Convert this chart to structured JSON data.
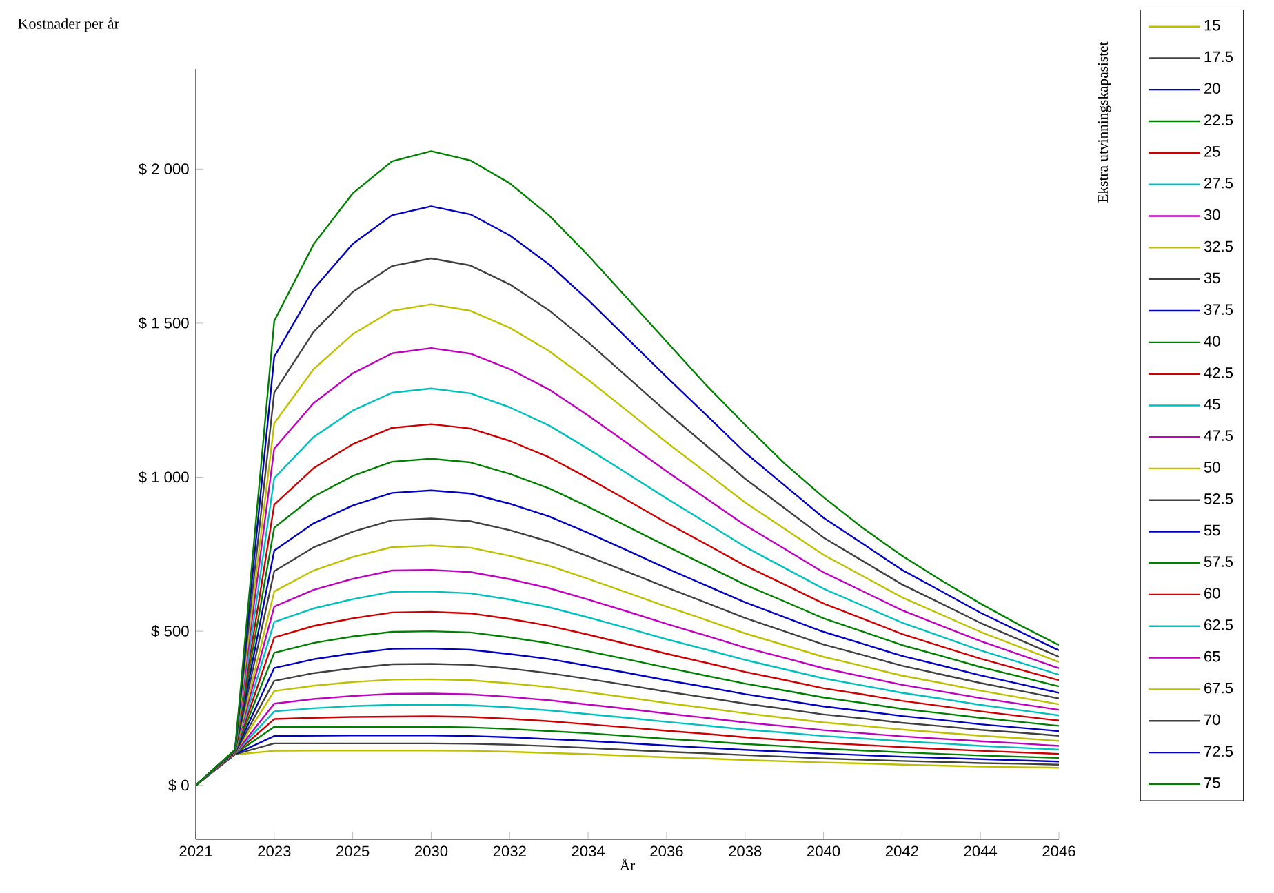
{
  "chart_data": {
    "type": "line",
    "ylabel": "Kostnader per år",
    "xlabel": "År",
    "legend_title": "Ekstra utvinningskapasistet",
    "legend": "right",
    "line_style": "solid",
    "categories": [
      "2021",
      null,
      "2023",
      null,
      "2025",
      null,
      "2030",
      null,
      "2032",
      null,
      "2034",
      null,
      "2036",
      null,
      "2038",
      null,
      "2040",
      null,
      "2042",
      null,
      "2044",
      null,
      "2046"
    ],
    "ylim": [
      -175,
      2325
    ],
    "yticks": [
      {
        "value": 0,
        "label": "$ 0"
      },
      {
        "value": 500,
        "label": "$ 500"
      },
      {
        "value": 1000,
        "label": "$ 1 000"
      },
      {
        "value": 1500,
        "label": "$ 1 500"
      },
      {
        "value": 2000,
        "label": "$ 2 000"
      }
    ],
    "series": [
      {
        "name": "15",
        "color": "#bfbf00",
        "values": [
          0,
          100,
          112,
          113,
          113,
          113,
          113,
          112,
          109,
          105,
          101,
          96,
          91,
          87,
          82,
          78,
          74,
          71,
          67,
          64,
          61,
          59,
          57
        ]
      },
      {
        "name": "17.5",
        "color": "#404040",
        "values": [
          0,
          101,
          136,
          136,
          136,
          136,
          136,
          135,
          132,
          127,
          121,
          115,
          109,
          104,
          98,
          93,
          87,
          83,
          79,
          76,
          72,
          70,
          67
        ]
      },
      {
        "name": "20",
        "color": "#0000bf",
        "values": [
          0,
          101,
          160,
          161,
          162,
          162,
          162,
          160,
          156,
          150,
          144,
          137,
          129,
          122,
          115,
          109,
          103,
          98,
          93,
          89,
          85,
          81,
          77
        ]
      },
      {
        "name": "22.5",
        "color": "#008000",
        "values": [
          0,
          102,
          190,
          190,
          190,
          190,
          190,
          188,
          183,
          176,
          169,
          160,
          151,
          143,
          134,
          127,
          119,
          113,
          107,
          102,
          97,
          93,
          89
        ]
      },
      {
        "name": "25",
        "color": "#cc0000",
        "values": [
          0,
          103,
          215,
          219,
          222,
          223,
          224,
          222,
          216,
          208,
          198,
          188,
          177,
          167,
          156,
          147,
          138,
          131,
          124,
          118,
          112,
          107,
          102
        ]
      },
      {
        "name": "27.5",
        "color": "#00bfbf",
        "values": [
          0,
          103,
          240,
          250,
          257,
          261,
          262,
          260,
          253,
          243,
          231,
          219,
          206,
          194,
          181,
          171,
          160,
          152,
          143,
          136,
          128,
          122,
          116
        ]
      },
      {
        "name": "30",
        "color": "#bf00bf",
        "values": [
          0,
          104,
          265,
          280,
          290,
          297,
          298,
          295,
          287,
          276,
          262,
          248,
          233,
          219,
          204,
          192,
          179,
          169,
          159,
          151,
          143,
          136,
          128
        ]
      },
      {
        "name": "32.5",
        "color": "#bfbf00",
        "values": [
          0,
          105,
          306,
          323,
          335,
          343,
          344,
          341,
          331,
          319,
          302,
          285,
          267,
          251,
          234,
          219,
          204,
          193,
          181,
          171,
          161,
          153,
          144
        ]
      },
      {
        "name": "35",
        "color": "#404040",
        "values": [
          0,
          105,
          339,
          364,
          380,
          393,
          394,
          391,
          379,
          364,
          345,
          325,
          304,
          285,
          265,
          248,
          230,
          217,
          203,
          192,
          180,
          171,
          161
        ]
      },
      {
        "name": "37.5",
        "color": "#0000bf",
        "values": [
          0,
          106,
          381,
          409,
          428,
          443,
          444,
          440,
          426,
          410,
          388,
          365,
          341,
          319,
          296,
          276,
          256,
          241,
          225,
          212,
          198,
          187,
          176
        ]
      },
      {
        "name": "40",
        "color": "#008000",
        "values": [
          0,
          107,
          430,
          462,
          483,
          498,
          500,
          496,
          480,
          461,
          435,
          409,
          382,
          356,
          330,
          308,
          285,
          267,
          248,
          234,
          219,
          206,
          193
        ]
      },
      {
        "name": "42.5",
        "color": "#cc0000",
        "values": [
          0,
          107,
          480,
          517,
          542,
          561,
          563,
          558,
          540,
          518,
          489,
          458,
          427,
          398,
          368,
          342,
          315,
          295,
          274,
          257,
          240,
          225,
          210
        ]
      },
      {
        "name": "45",
        "color": "#00bfbf",
        "values": [
          0,
          108,
          530,
          574,
          604,
          628,
          629,
          623,
          603,
          578,
          545,
          510,
          474,
          441,
          407,
          377,
          347,
          324,
          300,
          281,
          261,
          244,
          227
        ]
      },
      {
        "name": "47.5",
        "color": "#bf00bf",
        "values": [
          0,
          109,
          580,
          634,
          670,
          697,
          699,
          692,
          669,
          640,
          603,
          564,
          524,
          486,
          447,
          414,
          380,
          353,
          326,
          305,
          283,
          264,
          245
        ]
      },
      {
        "name": "50",
        "color": "#bfbf00",
        "values": [
          0,
          109,
          629,
          697,
          741,
          773,
          778,
          771,
          745,
          713,
          670,
          625,
          580,
          537,
          493,
          455,
          417,
          387,
          356,
          332,
          307,
          285,
          263
        ]
      },
      {
        "name": "52.5",
        "color": "#404040",
        "values": [
          0,
          110,
          695,
          772,
          823,
          860,
          866,
          857,
          828,
          791,
          743,
          693,
          642,
          593,
          543,
          500,
          457,
          423,
          388,
          360,
          332,
          307,
          282
        ]
      },
      {
        "name": "55",
        "color": "#0000bf",
        "values": [
          0,
          111,
          762,
          850,
          908,
          949,
          957,
          947,
          914,
          873,
          819,
          762,
          704,
          649,
          594,
          546,
          498,
          459,
          420,
          389,
          357,
          329,
          300
        ]
      },
      {
        "name": "57.5",
        "color": "#008000",
        "values": [
          0,
          111,
          836,
          937,
          1004,
          1050,
          1060,
          1048,
          1011,
          964,
          904,
          840,
          776,
          714,
          651,
          597,
          542,
          499,
          455,
          420,
          384,
          353,
          321
        ]
      },
      {
        "name": "60",
        "color": "#cc0000",
        "values": [
          0,
          112,
          911,
          1029,
          1107,
          1160,
          1172,
          1158,
          1118,
          1065,
          997,
          925,
          852,
          783,
          713,
          652,
          590,
          541,
          491,
          451,
          411,
          376,
          341
        ]
      },
      {
        "name": "62.5",
        "color": "#00bfbf",
        "values": [
          0,
          113,
          997,
          1130,
          1216,
          1274,
          1288,
          1272,
          1227,
          1168,
          1092,
          1012,
          931,
          853,
          774,
          706,
          638,
          583,
          528,
          483,
          438,
          399,
          359
        ]
      },
      {
        "name": "65",
        "color": "#bf00bf",
        "values": [
          0,
          113,
          1093,
          1240,
          1337,
          1402,
          1419,
          1401,
          1351,
          1285,
          1200,
          1110,
          1019,
          932,
          844,
          768,
          691,
          630,
          568,
          518,
          468,
          424,
          380
        ]
      },
      {
        "name": "67.5",
        "color": "#bfbf00",
        "values": [
          0,
          114,
          1175,
          1350,
          1464,
          1540,
          1561,
          1540,
          1485,
          1410,
          1316,
          1215,
          1113,
          1016,
          918,
          833,
          748,
          679,
          610,
          554,
          498,
          449,
          400
        ]
      },
      {
        "name": "70",
        "color": "#404040",
        "values": [
          0,
          115,
          1275,
          1471,
          1601,
          1685,
          1710,
          1687,
          1626,
          1542,
          1438,
          1325,
          1212,
          1104,
          995,
          900,
          804,
          728,
          652,
          590,
          527,
          472,
          417
        ]
      },
      {
        "name": "72.5",
        "color": "#0000bf",
        "values": [
          0,
          115,
          1391,
          1610,
          1757,
          1850,
          1879,
          1853,
          1785,
          1691,
          1575,
          1450,
          1325,
          1203,
          1080,
          974,
          868,
          784,
          699,
          630,
          560,
          499,
          438
        ]
      },
      {
        "name": "75",
        "color": "#008000",
        "values": [
          0,
          116,
          1507,
          1755,
          1921,
          2025,
          2058,
          2028,
          1954,
          1850,
          1720,
          1580,
          1440,
          1300,
          1170,
          1045,
          935,
          835,
          745,
          665,
          590,
          520,
          455
        ]
      }
    ]
  }
}
